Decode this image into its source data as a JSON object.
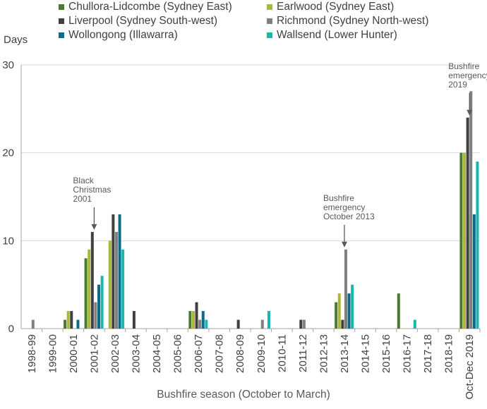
{
  "chart_data": {
    "type": "bar",
    "title": "",
    "ylabel": "Days",
    "xlabel": "Bushfire season (October to March)",
    "ylim": [
      0,
      30
    ],
    "yticks": [
      0,
      10,
      20,
      30
    ],
    "categories": [
      "1998-99",
      "1999-00",
      "2000-01",
      "2001-02",
      "2002-03",
      "2003-04",
      "2004-05",
      "2005-06",
      "2006-07",
      "2007-08",
      "2008-09",
      "2009-10",
      "2010-11",
      "2011-12",
      "2012-13",
      "2013-14",
      "2014-15",
      "2015-16",
      "2016-17",
      "2017-18",
      "2018-19",
      "Oct-Dec 2019"
    ],
    "series": [
      {
        "name": "Chullora-Lidcombe (Sydney East)",
        "color": "#4a7a32",
        "values": [
          0,
          0,
          1,
          8,
          0,
          0,
          0,
          0,
          2,
          0,
          0,
          0,
          0,
          0,
          0,
          3,
          0,
          0,
          4,
          0,
          0,
          20
        ]
      },
      {
        "name": "Earlwood (Sydney East)",
        "color": "#a9b83a",
        "values": [
          0,
          0,
          2,
          9,
          10,
          0,
          0,
          0,
          2,
          0,
          0,
          0,
          0,
          0,
          0,
          4,
          0,
          0,
          0,
          0,
          0,
          20
        ]
      },
      {
        "name": "Liverpool (Sydney South-west)",
        "color": "#404040",
        "values": [
          0,
          0,
          2,
          11,
          13,
          2,
          0,
          0,
          3,
          0,
          1,
          0,
          0,
          1,
          0,
          1,
          0,
          0,
          0,
          0,
          0,
          24
        ]
      },
      {
        "name": "Richmond (Sydney North-west)",
        "color": "#7f7f7f",
        "values": [
          1,
          0,
          0,
          3,
          11,
          0,
          0,
          0,
          1,
          0,
          0,
          1,
          0,
          1,
          0,
          9,
          0,
          0,
          0,
          0,
          0,
          27
        ]
      },
      {
        "name": "Wollongong (Illawarra)",
        "color": "#0d6b87",
        "values": [
          0,
          0,
          1,
          5,
          13,
          0,
          0,
          0,
          2,
          0,
          0,
          0,
          0,
          0,
          0,
          4,
          0,
          0,
          0,
          0,
          0,
          13
        ]
      },
      {
        "name": "Wallsend (Lower Hunter)",
        "color": "#16b8ad",
        "values": [
          0,
          0,
          0,
          6,
          9,
          0,
          0,
          0,
          1,
          0,
          0,
          2,
          0,
          0,
          0,
          5,
          0,
          0,
          1,
          0,
          0,
          19
        ]
      }
    ],
    "annotations": [
      {
        "lines": [
          "Black",
          "Christmas",
          "2001"
        ],
        "category": "2001-02",
        "value": 11
      },
      {
        "lines": [
          "Bushfire",
          "emergency",
          "October 2013"
        ],
        "category": "2013-14",
        "value": 9
      },
      {
        "lines": [
          "Bushfire",
          "emergency",
          "2019"
        ],
        "category": "Oct-Dec 2019",
        "value": 24
      }
    ]
  }
}
